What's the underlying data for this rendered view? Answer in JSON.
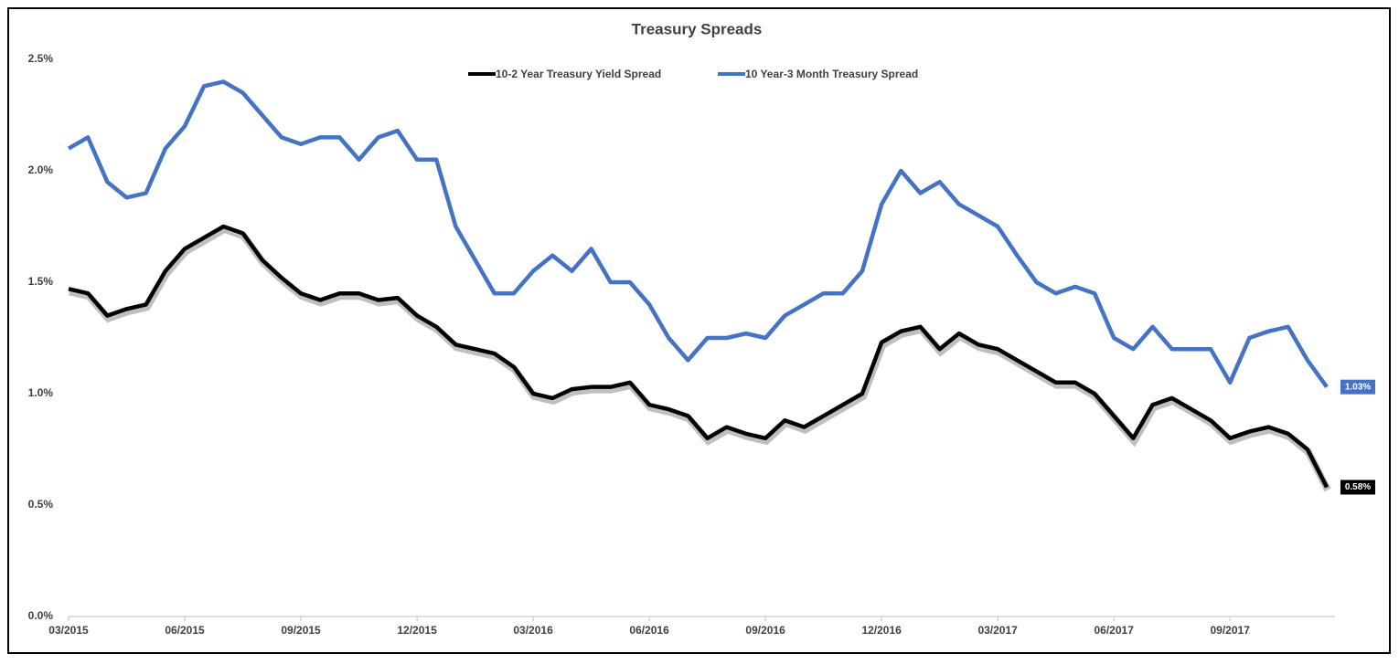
{
  "chart_data": {
    "type": "line",
    "title": "Treasury Spreads",
    "categories": [
      "03/2015",
      null,
      null,
      null,
      null,
      null,
      "06/2015",
      null,
      null,
      null,
      null,
      null,
      "09/2015",
      null,
      null,
      null,
      null,
      null,
      "12/2015",
      null,
      null,
      null,
      null,
      null,
      "03/2016",
      null,
      null,
      null,
      null,
      null,
      "06/2016",
      null,
      null,
      null,
      null,
      null,
      "09/2016",
      null,
      null,
      null,
      null,
      null,
      "12/2016",
      null,
      null,
      null,
      null,
      null,
      "03/2017",
      null,
      null,
      null,
      null,
      null,
      "06/2017",
      null,
      null,
      null,
      null,
      null,
      "09/2017",
      null,
      null,
      null,
      null,
      null
    ],
    "series": [
      {
        "name": "10-2 Year Treasury Yield Spread",
        "color": "#000000",
        "values": [
          1.47,
          1.45,
          1.35,
          1.38,
          1.4,
          1.55,
          1.65,
          1.7,
          1.75,
          1.72,
          1.6,
          1.52,
          1.45,
          1.42,
          1.45,
          1.45,
          1.42,
          1.43,
          1.35,
          1.3,
          1.22,
          1.2,
          1.18,
          1.12,
          1.0,
          0.98,
          1.02,
          1.03,
          1.03,
          1.05,
          0.95,
          0.93,
          0.9,
          0.8,
          0.85,
          0.82,
          0.8,
          0.88,
          0.85,
          0.9,
          0.95,
          1.0,
          1.23,
          1.28,
          1.3,
          1.2,
          1.27,
          1.22,
          1.2,
          1.15,
          1.1,
          1.05,
          1.05,
          1.0,
          0.9,
          0.8,
          0.95,
          0.98,
          0.93,
          0.88,
          0.8,
          0.83,
          0.85,
          0.82,
          0.75,
          0.58
        ],
        "value_labels": [
          null,
          null,
          null,
          null,
          null,
          null,
          null,
          null,
          null,
          null,
          null,
          null,
          null,
          null,
          null,
          null,
          null,
          null,
          null,
          null,
          null,
          null,
          null,
          null,
          null,
          null,
          null,
          null,
          null,
          null,
          null,
          null,
          null,
          null,
          null,
          null,
          null,
          null,
          null,
          null,
          null,
          null,
          null,
          null,
          null,
          null,
          null,
          null,
          null,
          null,
          null,
          null,
          null,
          null,
          null,
          null,
          null,
          null,
          null,
          null,
          null,
          null,
          null,
          null,
          null,
          "0.58%"
        ]
      },
      {
        "name": "10 Year-3 Month Treasury Spread",
        "color": "#4472c4",
        "values": [
          2.1,
          2.15,
          1.95,
          1.88,
          1.9,
          2.1,
          2.2,
          2.38,
          2.4,
          2.35,
          2.25,
          2.15,
          2.12,
          2.15,
          2.15,
          2.05,
          2.15,
          2.18,
          2.05,
          2.05,
          1.75,
          1.6,
          1.45,
          1.45,
          1.55,
          1.62,
          1.55,
          1.65,
          1.5,
          1.5,
          1.4,
          1.25,
          1.15,
          1.25,
          1.25,
          1.27,
          1.25,
          1.35,
          1.4,
          1.45,
          1.45,
          1.55,
          1.85,
          2.0,
          1.9,
          1.95,
          1.85,
          1.8,
          1.75,
          1.62,
          1.5,
          1.45,
          1.48,
          1.45,
          1.25,
          1.2,
          1.3,
          1.2,
          1.2,
          1.2,
          1.05,
          1.25,
          1.28,
          1.3,
          1.15,
          1.03
        ],
        "value_labels": [
          null,
          null,
          null,
          null,
          null,
          null,
          null,
          null,
          null,
          null,
          null,
          null,
          null,
          null,
          null,
          null,
          null,
          null,
          null,
          null,
          null,
          null,
          null,
          null,
          null,
          null,
          null,
          null,
          null,
          null,
          null,
          null,
          null,
          null,
          null,
          null,
          null,
          null,
          null,
          null,
          null,
          null,
          null,
          null,
          null,
          null,
          null,
          null,
          null,
          null,
          null,
          null,
          null,
          null,
          null,
          null,
          null,
          null,
          null,
          null,
          null,
          null,
          null,
          null,
          null,
          "1.03%"
        ]
      }
    ],
    "ylim": [
      0,
      2.5
    ],
    "yticks": [
      {
        "value": 0,
        "label": "0.0%"
      },
      {
        "value": 0.5,
        "label": "0.5%"
      },
      {
        "value": 1,
        "label": "1.0%"
      },
      {
        "value": 1.5,
        "label": "1.5%"
      },
      {
        "value": 2,
        "label": "2.0%"
      },
      {
        "value": 2.5,
        "label": "2.5%"
      }
    ],
    "grid": false,
    "legend": "top"
  }
}
